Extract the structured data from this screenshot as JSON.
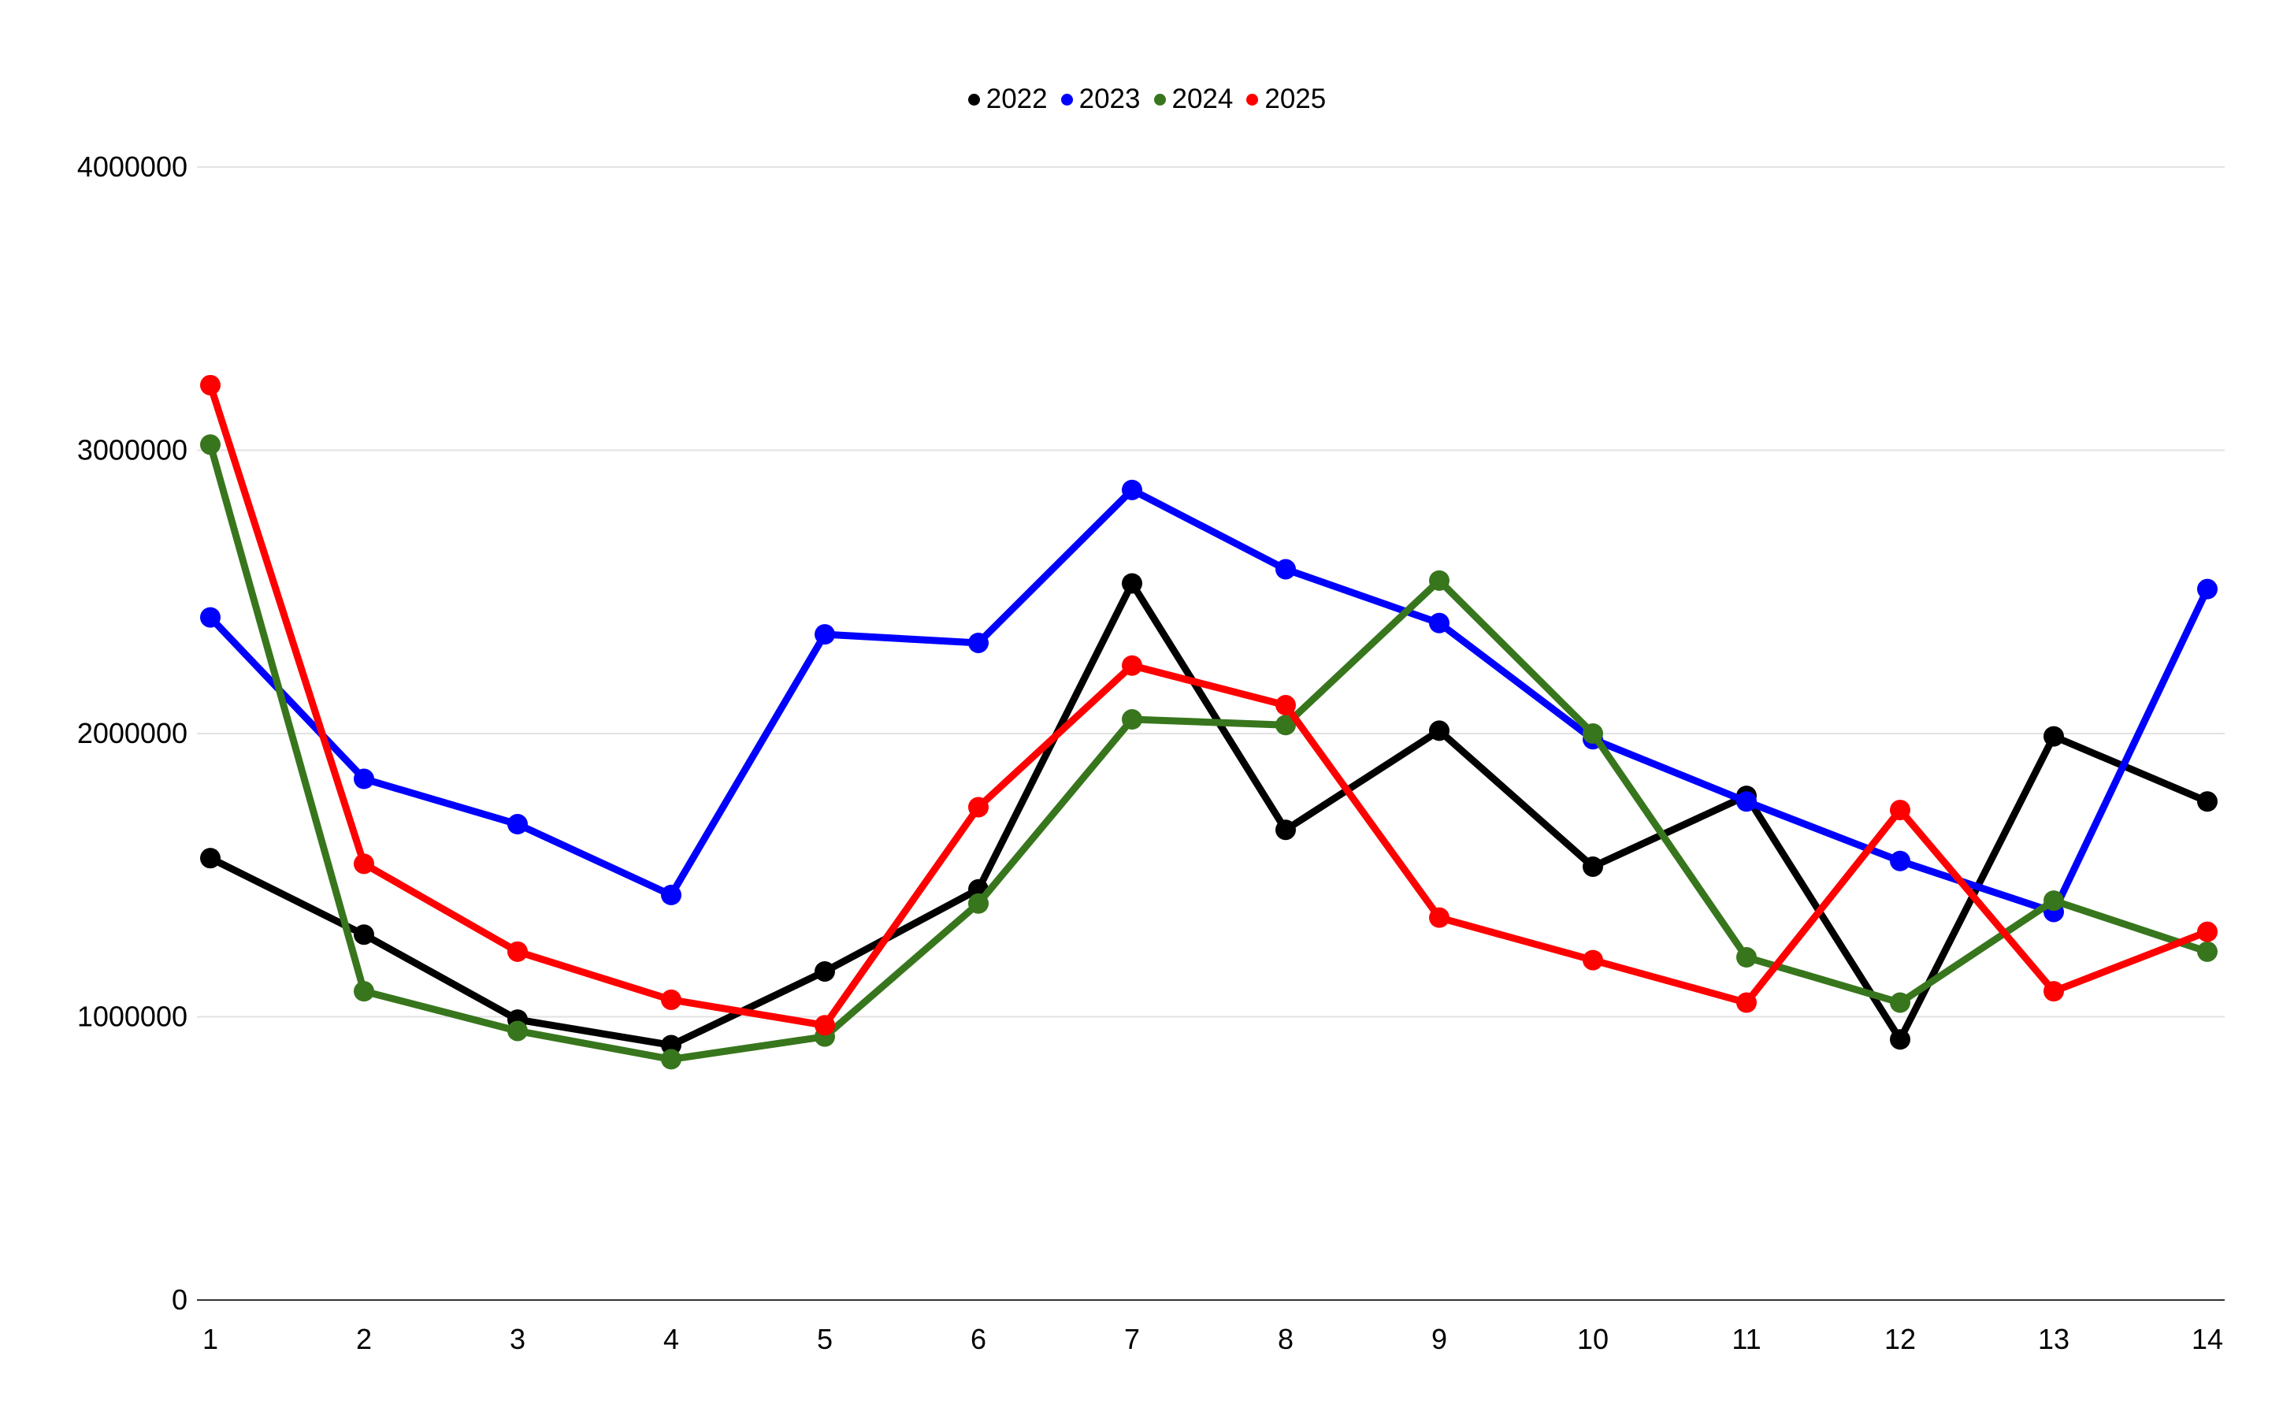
{
  "chart_data": {
    "type": "line",
    "title": "",
    "xlabel": "",
    "ylabel": "",
    "grid": true,
    "legend_position": "top-center",
    "categories": [
      "1",
      "2",
      "3",
      "4",
      "5",
      "6",
      "7",
      "8",
      "9",
      "10",
      "11",
      "12",
      "13",
      "14"
    ],
    "y_ticks": [
      {
        "value": 0,
        "label": "0"
      },
      {
        "value": 1000000,
        "label": "1000000"
      },
      {
        "value": 2000000,
        "label": "2000000"
      },
      {
        "value": 3000000,
        "label": "3000000"
      },
      {
        "value": 4000000,
        "label": "4000000"
      }
    ],
    "ylim": [
      0,
      4000000
    ],
    "series": [
      {
        "name": "2022",
        "color": "#000000",
        "values": [
          1560000,
          1290000,
          990000,
          900000,
          1160000,
          1450000,
          2530000,
          1660000,
          2010000,
          1530000,
          1780000,
          920000,
          1990000,
          1760000
        ]
      },
      {
        "name": "2023",
        "color": "#0000ff",
        "values": [
          2410000,
          1840000,
          1680000,
          1430000,
          2350000,
          2320000,
          2860000,
          2580000,
          2390000,
          1980000,
          1760000,
          1550000,
          1370000,
          2510000
        ]
      },
      {
        "name": "2024",
        "color": "#38761d",
        "values": [
          3020000,
          1090000,
          950000,
          850000,
          930000,
          1400000,
          2050000,
          2030000,
          2540000,
          2000000,
          1210000,
          1050000,
          1410000,
          1230000
        ]
      },
      {
        "name": "2025",
        "color": "#ff0000",
        "values": [
          3230000,
          1540000,
          1230000,
          1060000,
          970000,
          1740000,
          2240000,
          2100000,
          1350000,
          1200000,
          1050000,
          1730000,
          1090000,
          1300000
        ]
      }
    ],
    "colors": {
      "gridline": "#e2e2e2",
      "zero_axis": "#333333",
      "background": "#ffffff",
      "tick_text": "#000000"
    }
  }
}
